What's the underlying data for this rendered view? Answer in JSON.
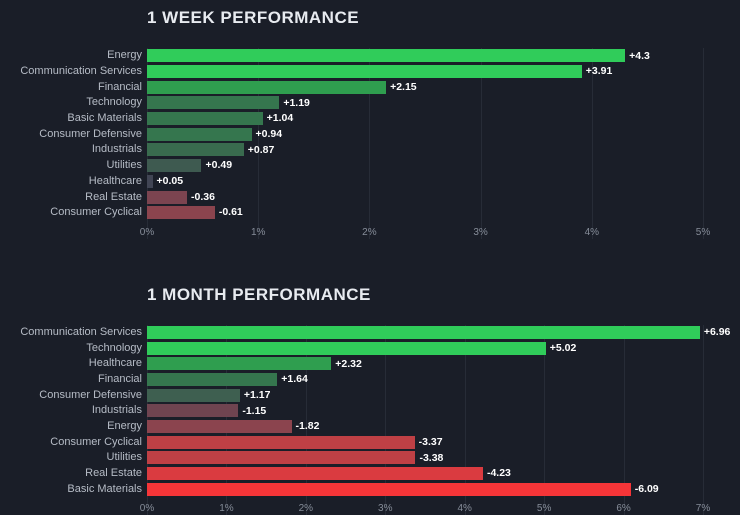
{
  "theme": {
    "background": "#1a1e28",
    "gridline_color": "#272c37",
    "label_color": "#b6bcc6",
    "tick_color": "#868d99",
    "title_color": "#e8ebf0",
    "value_color": "#ffffff"
  },
  "chart_data": [
    {
      "type": "bar",
      "orientation": "horizontal",
      "title": "1 WEEK PERFORMANCE",
      "xlabel": "",
      "ylabel": "",
      "axis": {
        "min": 0,
        "max": 5,
        "unit": "%",
        "ticks": [
          "0%",
          "1%",
          "2%",
          "3%",
          "4%",
          "5%"
        ]
      },
      "grid": true,
      "legend": false,
      "rows": [
        {
          "label": "Energy",
          "value": 4.3,
          "display": "+4.3",
          "color": "#30cc5a"
        },
        {
          "label": "Communication Services",
          "value": 3.91,
          "display": "+3.91",
          "color": "#30cc5a"
        },
        {
          "label": "Financial",
          "value": 2.15,
          "display": "+2.15",
          "color": "#2f9e4f"
        },
        {
          "label": "Technology",
          "value": 1.19,
          "display": "+1.19",
          "color": "#35764e"
        },
        {
          "label": "Basic Materials",
          "value": 1.04,
          "display": "+1.04",
          "color": "#35764e"
        },
        {
          "label": "Consumer Defensive",
          "value": 0.94,
          "display": "+0.94",
          "color": "#35764e"
        },
        {
          "label": "Industrials",
          "value": 0.87,
          "display": "+0.87",
          "color": "#396b4e"
        },
        {
          "label": "Utilities",
          "value": 0.49,
          "display": "+0.49",
          "color": "#3e5a50"
        },
        {
          "label": "Healthcare",
          "value": 0.05,
          "display": "+0.05",
          "color": "#414554"
        },
        {
          "label": "Real Estate",
          "value": -0.36,
          "display": "-0.36",
          "color": "#7b4450"
        },
        {
          "label": "Consumer Cyclical",
          "value": -0.61,
          "display": "-0.61",
          "color": "#8b444e"
        }
      ]
    },
    {
      "type": "bar",
      "orientation": "horizontal",
      "title": "1 MONTH PERFORMANCE",
      "xlabel": "",
      "ylabel": "",
      "axis": {
        "min": 0,
        "max": 7,
        "unit": "%",
        "ticks": [
          "0%",
          "1%",
          "2%",
          "3%",
          "4%",
          "5%",
          "6%",
          "7%"
        ]
      },
      "grid": true,
      "legend": false,
      "rows": [
        {
          "label": "Communication Services",
          "value": 6.96,
          "display": "+6.96",
          "color": "#30cc5a"
        },
        {
          "label": "Technology",
          "value": 5.02,
          "display": "+5.02",
          "color": "#30cc5a"
        },
        {
          "label": "Healthcare",
          "value": 2.32,
          "display": "+2.32",
          "color": "#2f9e4f"
        },
        {
          "label": "Financial",
          "value": 1.64,
          "display": "+1.64",
          "color": "#35764e"
        },
        {
          "label": "Consumer Defensive",
          "value": 1.17,
          "display": "+1.17",
          "color": "#3e5f50"
        },
        {
          "label": "Industrials",
          "value": -1.15,
          "display": "-1.15",
          "color": "#6f4450"
        },
        {
          "label": "Energy",
          "value": -1.82,
          "display": "-1.82",
          "color": "#8b444e"
        },
        {
          "label": "Consumer Cyclical",
          "value": -3.37,
          "display": "-3.37",
          "color": "#bf4045"
        },
        {
          "label": "Utilities",
          "value": -3.38,
          "display": "-3.38",
          "color": "#bf4045"
        },
        {
          "label": "Real Estate",
          "value": -4.23,
          "display": "-4.23",
          "color": "#da3b40"
        },
        {
          "label": "Basic Materials",
          "value": -6.09,
          "display": "-6.09",
          "color": "#f63538"
        }
      ]
    }
  ]
}
